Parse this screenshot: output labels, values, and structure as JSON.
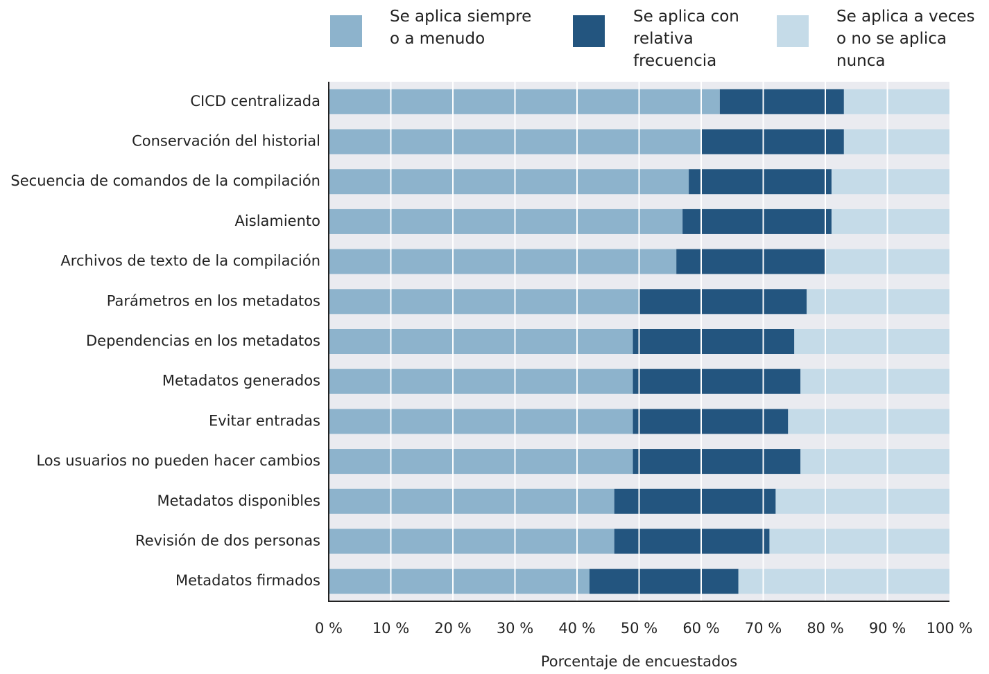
{
  "chart_data": {
    "type": "stacked-bar",
    "orientation": "horizontal",
    "x_axis_label": "Porcentaje de encuestados",
    "categories": [
      "CICD centralizada",
      "Conservación del historial",
      "Secuencia de comandos de la compilación",
      "Aislamiento",
      "Archivos de texto de la compilación",
      "Parámetros en los metadatos",
      "Dependencias en los metadatos",
      "Metadatos generados",
      "Evitar entradas",
      "Los usuarios no pueden hacer cambios",
      "Metadatos disponibles",
      "Revisión de dos personas",
      "Metadatos firmados"
    ],
    "series": [
      {
        "name": "Se aplica siempre o a menudo",
        "color": "#8db3cc",
        "values": [
          63,
          60,
          58,
          57,
          56,
          50,
          49,
          49,
          49,
          49,
          46,
          46,
          42
        ]
      },
      {
        "name": "Se aplica con relativa frecuencia",
        "color": "#23557f",
        "values": [
          20,
          23,
          23,
          24,
          24,
          27,
          26,
          27,
          25,
          27,
          26,
          25,
          24
        ]
      },
      {
        "name": "Se aplica a veces o no se aplica nunca",
        "color": "#c5dbe8",
        "values": [
          17,
          17,
          19,
          19,
          20,
          23,
          25,
          24,
          26,
          24,
          28,
          29,
          34
        ]
      }
    ],
    "xlim": [
      0,
      100
    ],
    "xticks": [
      {
        "value": 0,
        "label": "0 %"
      },
      {
        "value": 10,
        "label": "10 %"
      },
      {
        "value": 20,
        "label": "20 %"
      },
      {
        "value": 30,
        "label": "30 %"
      },
      {
        "value": 40,
        "label": "40 %"
      },
      {
        "value": 50,
        "label": "50 %"
      },
      {
        "value": 60,
        "label": "60 %"
      },
      {
        "value": 70,
        "label": "70 %"
      },
      {
        "value": 80,
        "label": "80 %"
      },
      {
        "value": 90,
        "label": "90 %"
      },
      {
        "value": 100,
        "label": "100 %"
      }
    ],
    "grid": true
  }
}
